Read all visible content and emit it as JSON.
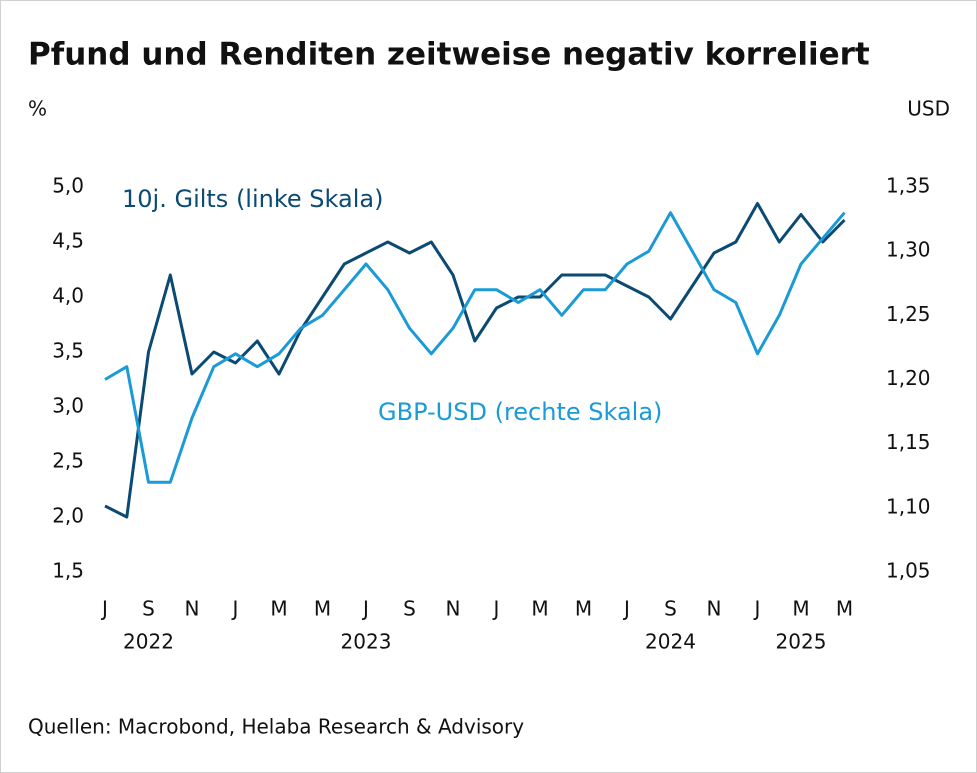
{
  "chart_data": {
    "type": "line",
    "title": "Pfund und Renditen zeitweise negativ korreliert",
    "y_axis_label": "%",
    "y2_axis_label": "USD",
    "source": "Quellen: Macrobond, Helaba Research & Advisory",
    "categories": [
      "J",
      null,
      "S",
      null,
      "N",
      null,
      "J",
      null,
      "M",
      null,
      "M",
      null,
      "J",
      null,
      "S",
      null,
      "N",
      null,
      "J",
      null,
      "M",
      null,
      "M",
      null,
      "J",
      null,
      "S",
      null,
      "N",
      null,
      "J",
      null,
      "M",
      null,
      "M"
    ],
    "year_categories": [
      null,
      null,
      "2022",
      null,
      null,
      null,
      null,
      null,
      null,
      null,
      null,
      null,
      "2023",
      null,
      null,
      null,
      null,
      null,
      null,
      null,
      null,
      null,
      null,
      null,
      null,
      null,
      "2024",
      null,
      null,
      null,
      null,
      null,
      "2025",
      null,
      null
    ],
    "series": [
      {
        "name": "10j. Gilts (linke Skala)",
        "color": "#0b4a72",
        "axis": "y",
        "values": [
          2.1,
          2.0,
          3.5,
          4.2,
          3.3,
          3.5,
          3.4,
          3.6,
          3.3,
          3.7,
          4.0,
          4.3,
          4.4,
          4.5,
          4.4,
          4.5,
          4.2,
          3.6,
          3.9,
          4.0,
          4.0,
          4.2,
          4.2,
          4.2,
          4.1,
          4.0,
          3.8,
          4.1,
          4.4,
          4.5,
          4.85,
          4.5,
          4.75,
          4.5,
          4.7
        ]
      },
      {
        "name": "GBP-USD (rechte Skala)",
        "color": "#1a9ad6",
        "axis": "y2",
        "values": [
          1.2,
          1.21,
          1.12,
          1.12,
          1.17,
          1.21,
          1.22,
          1.21,
          1.22,
          1.24,
          1.25,
          1.27,
          1.29,
          1.27,
          1.24,
          1.22,
          1.24,
          1.27,
          1.27,
          1.26,
          1.27,
          1.25,
          1.27,
          1.27,
          1.29,
          1.3,
          1.33,
          1.3,
          1.27,
          1.26,
          1.22,
          1.25,
          1.29,
          1.31,
          1.33
        ]
      }
    ],
    "ylim": [
      1.5,
      5.0
    ],
    "yticks": [
      {
        "value": 1.5,
        "label": "1,5"
      },
      {
        "value": 2.0,
        "label": "2,0"
      },
      {
        "value": 2.5,
        "label": "2,5"
      },
      {
        "value": 3.0,
        "label": "3,0"
      },
      {
        "value": 3.5,
        "label": "3,5"
      },
      {
        "value": 4.0,
        "label": "4,0"
      },
      {
        "value": 4.5,
        "label": "4,5"
      },
      {
        "value": 5.0,
        "label": "5,0"
      }
    ],
    "y2lim": [
      1.05,
      1.35
    ],
    "y2ticks": [
      {
        "value": 1.05,
        "label": "1,05"
      },
      {
        "value": 1.1,
        "label": "1,10"
      },
      {
        "value": 1.15,
        "label": "1,15"
      },
      {
        "value": 1.2,
        "label": "1,20"
      },
      {
        "value": 1.25,
        "label": "1,25"
      },
      {
        "value": 1.3,
        "label": "1,30"
      },
      {
        "value": 1.35,
        "label": "1,35"
      }
    ],
    "grid": false
  }
}
